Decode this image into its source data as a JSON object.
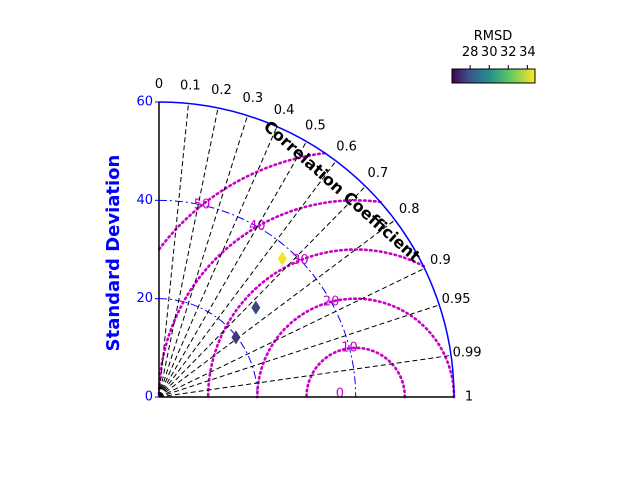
{
  "chart_data": {
    "type": "scatter",
    "subtype": "taylor-diagram",
    "ylabel": "Standard Deviation",
    "corr_label": "Correlation Coefficient",
    "std_ticks": [
      "0",
      "20",
      "40",
      "60"
    ],
    "std_range": [
      0,
      60
    ],
    "corr_ticks": [
      {
        "value": 0,
        "label": "0"
      },
      {
        "value": 0.1,
        "label": "0.1"
      },
      {
        "value": 0.2,
        "label": "0.2"
      },
      {
        "value": 0.3,
        "label": "0.3"
      },
      {
        "value": 0.4,
        "label": "0.4"
      },
      {
        "value": 0.5,
        "label": "0.5"
      },
      {
        "value": 0.6,
        "label": "0.6"
      },
      {
        "value": 0.7,
        "label": "0.7"
      },
      {
        "value": 0.8,
        "label": "0.8"
      },
      {
        "value": 0.9,
        "label": "0.9"
      },
      {
        "value": 0.95,
        "label": "0.95"
      },
      {
        "value": 0.99,
        "label": "0.99"
      },
      {
        "value": 1,
        "label": "1"
      }
    ],
    "reference_std": 40,
    "rmsd_contours": [
      {
        "value": 0,
        "label": "0"
      },
      {
        "value": 10,
        "label": "10"
      },
      {
        "value": 20,
        "label": "20"
      },
      {
        "value": 30,
        "label": "30"
      },
      {
        "value": 40,
        "label": "40"
      },
      {
        "value": 50,
        "label": "50"
      }
    ],
    "std_contours": [
      20,
      40
    ],
    "points": [
      {
        "std": 19.8,
        "corr": 0.79,
        "rmsd": 27.3
      },
      {
        "std": 26.8,
        "corr": 0.735,
        "rmsd": 27.6
      },
      {
        "std": 37.7,
        "corr": 0.665,
        "rmsd": 34.6
      }
    ],
    "colorbar": {
      "title": "RMSD",
      "ticks": [
        "28",
        "30",
        "32",
        "34"
      ],
      "range": [
        26.1,
        34.8
      ],
      "colormap": "viridis"
    },
    "colors": {
      "axis": "#0000ff",
      "rmsd": "#c800c8",
      "correlation_lines": "#000000"
    }
  }
}
